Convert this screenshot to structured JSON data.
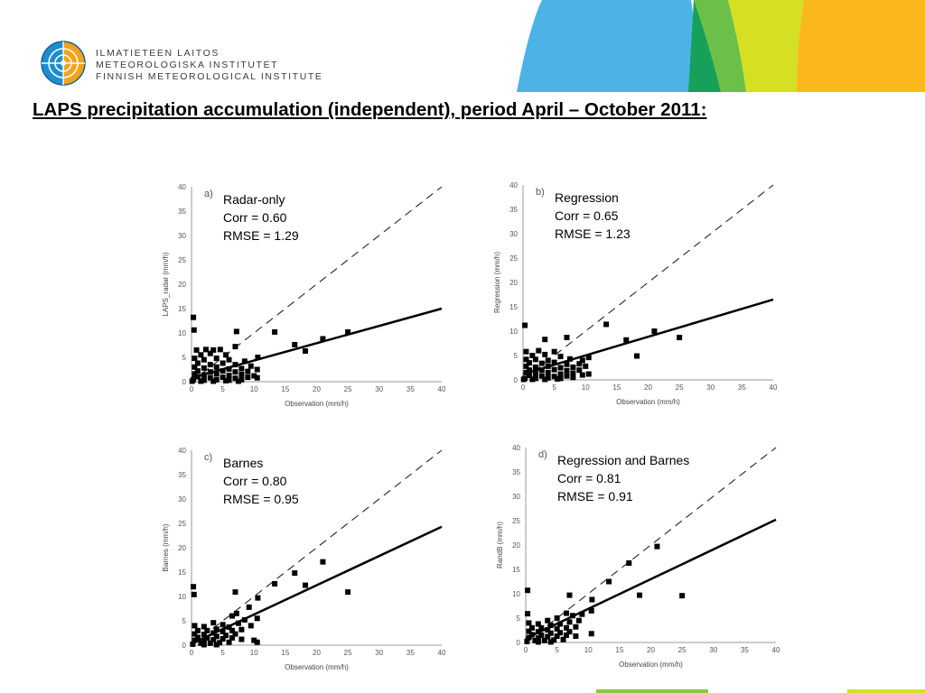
{
  "header": {
    "institute_lines": [
      "ILMATIETEEN LAITOS",
      "METEOROLOGISKA INSTITUTET",
      "FINNISH METEOROLOGICAL INSTITUTE"
    ],
    "banner_colors": [
      "#4db3e6",
      "#16a05a",
      "#6cc04a",
      "#d4e021",
      "#fbb81c"
    ]
  },
  "title": "LAPS precipitation accumulation (independent), period April – October 2011:",
  "chart_data": [
    {
      "type": "scatter",
      "panel": "a)",
      "method": "Radar-only",
      "corr": "Corr = 0.60",
      "rmse": "RMSE = 1.29",
      "xlabel": "Observation (mm/h)",
      "ylabel": "LAPS_radar (mm/h)",
      "xlim": [
        0,
        40
      ],
      "ylim": [
        0,
        40
      ],
      "xticks": [
        0,
        5,
        10,
        15,
        20,
        25,
        30,
        35,
        40
      ],
      "yticks": [
        0,
        5,
        10,
        15,
        20,
        25,
        30,
        35,
        40
      ],
      "identity_line": true,
      "regression_line": {
        "x": [
          0,
          40
        ],
        "y": [
          0.8,
          15.0
        ]
      },
      "points": [
        [
          0.3,
          13.2
        ],
        [
          0.4,
          10.6
        ],
        [
          7.2,
          10.3
        ],
        [
          13.3,
          10.2
        ],
        [
          25,
          10.2
        ],
        [
          21,
          8.8
        ],
        [
          16.5,
          7.6
        ],
        [
          18.2,
          6.3
        ],
        [
          0.8,
          6.5
        ],
        [
          2.3,
          6.6
        ],
        [
          3.5,
          6.5
        ],
        [
          4.6,
          6.6
        ],
        [
          7,
          7.2
        ],
        [
          1.5,
          5.5
        ],
        [
          3,
          5.8
        ],
        [
          5.5,
          5.5
        ],
        [
          10.6,
          5
        ],
        [
          0.5,
          4.8
        ],
        [
          2,
          4.5
        ],
        [
          4,
          4.8
        ],
        [
          6,
          4.5
        ],
        [
          8.5,
          4.2
        ],
        [
          1,
          3.8
        ],
        [
          3,
          3.5
        ],
        [
          5,
          3.8
        ],
        [
          7,
          3.5
        ],
        [
          9.5,
          3.2
        ],
        [
          0.5,
          3
        ],
        [
          2,
          2.8
        ],
        [
          4,
          3
        ],
        [
          6,
          2.6
        ],
        [
          8,
          2.7
        ],
        [
          10.5,
          2.5
        ],
        [
          1,
          2.2
        ],
        [
          3,
          2
        ],
        [
          5,
          2.2
        ],
        [
          7,
          2
        ],
        [
          9,
          2.1
        ],
        [
          0.5,
          1.6
        ],
        [
          2,
          1.4
        ],
        [
          4,
          1.6
        ],
        [
          6,
          1.3
        ],
        [
          8,
          1.5
        ],
        [
          10,
          1.2
        ],
        [
          1,
          1
        ],
        [
          3,
          0.8
        ],
        [
          5,
          0.9
        ],
        [
          7,
          0.7
        ],
        [
          9,
          0.9
        ],
        [
          0.3,
          0.4
        ],
        [
          2,
          0.3
        ],
        [
          4,
          0.4
        ],
        [
          6,
          0.3
        ],
        [
          8,
          0.4
        ],
        [
          10.5,
          0.8
        ],
        [
          1.5,
          0.1
        ],
        [
          3.5,
          0.1
        ],
        [
          5.5,
          0.2
        ],
        [
          7.5,
          0.1
        ],
        [
          0.1,
          0.1
        ]
      ]
    },
    {
      "type": "scatter",
      "panel": "b)",
      "method": "Regression",
      "corr": "Corr = 0.65",
      "rmse": "RMSE = 1.23",
      "xlabel": "Observation (mm/h)",
      "ylabel": "Regression (mm/h)",
      "xlim": [
        0,
        40
      ],
      "ylim": [
        0,
        40
      ],
      "xticks": [
        0,
        5,
        10,
        15,
        20,
        25,
        30,
        35,
        40
      ],
      "yticks": [
        0,
        5,
        10,
        15,
        20,
        25,
        30,
        35,
        40
      ],
      "identity_line": true,
      "regression_line": {
        "x": [
          0,
          40
        ],
        "y": [
          1.2,
          16.5
        ]
      },
      "points": [
        [
          0.3,
          11.2
        ],
        [
          13.3,
          11.4
        ],
        [
          21,
          10
        ],
        [
          7,
          8.7
        ],
        [
          25,
          8.7
        ],
        [
          3.5,
          8.3
        ],
        [
          16.5,
          8.2
        ],
        [
          18.2,
          4.9
        ],
        [
          0.5,
          5.8
        ],
        [
          2.5,
          6
        ],
        [
          5,
          5.8
        ],
        [
          1.5,
          5
        ],
        [
          3.5,
          5.2
        ],
        [
          6,
          4.8
        ],
        [
          10.5,
          4.6
        ],
        [
          0.5,
          4.2
        ],
        [
          2,
          4.2
        ],
        [
          4,
          4
        ],
        [
          7.5,
          4.3
        ],
        [
          9.5,
          4
        ],
        [
          1,
          3.5
        ],
        [
          3,
          3.4
        ],
        [
          5,
          3.6
        ],
        [
          7,
          3.2
        ],
        [
          9,
          3.3
        ],
        [
          0.5,
          2.8
        ],
        [
          2,
          2.6
        ],
        [
          4,
          2.8
        ],
        [
          6,
          2.5
        ],
        [
          8,
          2.6
        ],
        [
          10,
          2.8
        ],
        [
          1,
          2
        ],
        [
          3,
          2
        ],
        [
          5,
          2.1
        ],
        [
          7,
          1.9
        ],
        [
          9,
          2
        ],
        [
          0.5,
          1.5
        ],
        [
          2,
          1.3
        ],
        [
          4,
          1.5
        ],
        [
          6,
          1.2
        ],
        [
          8,
          1.4
        ],
        [
          10.5,
          1.2
        ],
        [
          1,
          0.9
        ],
        [
          3,
          0.8
        ],
        [
          5,
          0.7
        ],
        [
          7,
          0.8
        ],
        [
          9.5,
          1
        ],
        [
          0.3,
          0.3
        ],
        [
          2,
          0.3
        ],
        [
          4,
          0.4
        ],
        [
          6,
          0.3
        ],
        [
          8,
          0.5
        ],
        [
          1.5,
          0.1
        ],
        [
          3.5,
          0.1
        ],
        [
          5.5,
          0.2
        ],
        [
          0.1,
          0.1
        ]
      ]
    },
    {
      "type": "scatter",
      "panel": "c)",
      "method": "Barnes",
      "corr": "Corr = 0.80",
      "rmse": "RMSE = 0.95",
      "xlabel": "Observation (mm/h)",
      "ylabel": "Barnes (mm/h)",
      "xlim": [
        0,
        40
      ],
      "ylim": [
        0,
        40
      ],
      "xticks": [
        0,
        5,
        10,
        15,
        20,
        25,
        30,
        35,
        40
      ],
      "yticks": [
        0,
        5,
        10,
        15,
        20,
        25,
        30,
        35,
        40
      ],
      "identity_line": true,
      "regression_line": {
        "x": [
          0,
          40
        ],
        "y": [
          0.3,
          24.3
        ]
      },
      "points": [
        [
          0.3,
          12
        ],
        [
          0.4,
          10.4
        ],
        [
          21,
          17.1
        ],
        [
          16.5,
          14.8
        ],
        [
          18.2,
          12.3
        ],
        [
          13.3,
          12.6
        ],
        [
          7,
          10.9
        ],
        [
          25,
          10.9
        ],
        [
          10.6,
          9.7
        ],
        [
          9.2,
          7.8
        ],
        [
          0.5,
          4
        ],
        [
          2,
          3.8
        ],
        [
          3.5,
          4.6
        ],
        [
          5,
          4.2
        ],
        [
          6.5,
          6
        ],
        [
          7.2,
          6.5
        ],
        [
          8.5,
          5.2
        ],
        [
          10.5,
          5.5
        ],
        [
          1,
          3
        ],
        [
          2.5,
          3
        ],
        [
          4,
          3.3
        ],
        [
          6,
          3.7
        ],
        [
          7.5,
          4.5
        ],
        [
          9.5,
          4
        ],
        [
          0.5,
          2.3
        ],
        [
          2,
          2.2
        ],
        [
          3.5,
          2.5
        ],
        [
          5,
          2.8
        ],
        [
          6.5,
          3
        ],
        [
          8,
          3.2
        ],
        [
          1,
          1.6
        ],
        [
          2.5,
          1.5
        ],
        [
          4,
          1.8
        ],
        [
          5.5,
          2
        ],
        [
          7,
          2.3
        ],
        [
          0.5,
          1
        ],
        [
          2,
          0.9
        ],
        [
          3.5,
          1.1
        ],
        [
          5,
          1.3
        ],
        [
          6.5,
          1.5
        ],
        [
          8,
          1.2
        ],
        [
          10,
          1
        ],
        [
          10.5,
          0.6
        ],
        [
          1.5,
          0.4
        ],
        [
          3,
          0.4
        ],
        [
          4.5,
          0.5
        ],
        [
          6,
          0.6
        ],
        [
          0.2,
          0.2
        ],
        [
          2,
          0.1
        ],
        [
          4,
          0.1
        ]
      ]
    },
    {
      "type": "scatter",
      "panel": "d)",
      "method": "Regression and Barnes",
      "corr": "Corr = 0.81",
      "rmse": "RMSE = 0.91",
      "xlabel": "Observation (mm/h)",
      "ylabel": "RandB (mm/h)",
      "xlim": [
        0,
        40
      ],
      "ylim": [
        0,
        40
      ],
      "xticks": [
        0,
        5,
        10,
        15,
        20,
        25,
        30,
        35,
        40
      ],
      "yticks": [
        0,
        5,
        10,
        15,
        20,
        25,
        30,
        35,
        40
      ],
      "identity_line": true,
      "regression_line": {
        "x": [
          0,
          40
        ],
        "y": [
          0.8,
          25.2
        ]
      },
      "points": [
        [
          0.3,
          10.7
        ],
        [
          21,
          19.7
        ],
        [
          16.5,
          16.3
        ],
        [
          13.3,
          12.5
        ],
        [
          7,
          9.7
        ],
        [
          18.2,
          9.7
        ],
        [
          25,
          9.6
        ],
        [
          10.6,
          8.8
        ],
        [
          0.5,
          4
        ],
        [
          2,
          3.8
        ],
        [
          3.5,
          4.5
        ],
        [
          5,
          5
        ],
        [
          6.5,
          6
        ],
        [
          7.5,
          5.5
        ],
        [
          9,
          5.8
        ],
        [
          10.5,
          6.5
        ],
        [
          1,
          3
        ],
        [
          2.5,
          3
        ],
        [
          4,
          3.5
        ],
        [
          5.5,
          3.8
        ],
        [
          7,
          4.2
        ],
        [
          8.5,
          4.5
        ],
        [
          0.5,
          2.3
        ],
        [
          2,
          2.2
        ],
        [
          3.5,
          2.6
        ],
        [
          5,
          2.8
        ],
        [
          6.5,
          3
        ],
        [
          8,
          3.2
        ],
        [
          10.5,
          1.8
        ],
        [
          1,
          1.6
        ],
        [
          2.5,
          1.5
        ],
        [
          4,
          1.9
        ],
        [
          5.5,
          2
        ],
        [
          7,
          2.2
        ],
        [
          0.5,
          1
        ],
        [
          2,
          0.9
        ],
        [
          3.5,
          1.2
        ],
        [
          5,
          1.3
        ],
        [
          6.5,
          1.5
        ],
        [
          8,
          1.3
        ],
        [
          1.5,
          0.4
        ],
        [
          3,
          0.4
        ],
        [
          4.5,
          0.5
        ],
        [
          6,
          0.6
        ],
        [
          0.2,
          0.2
        ],
        [
          2,
          0.1
        ],
        [
          4,
          0.1
        ],
        [
          0.3,
          5.9
        ]
      ]
    }
  ]
}
